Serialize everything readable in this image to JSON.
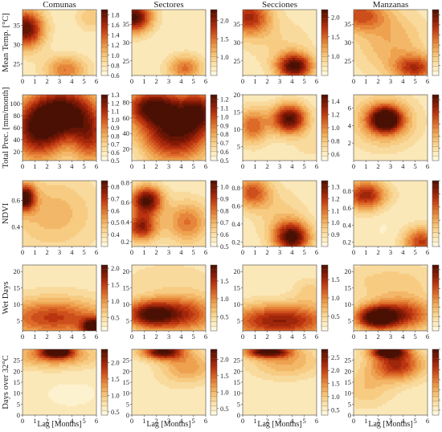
{
  "chart_data": {
    "type": "heatmap",
    "layout": "5 rows x 4 columns grid of filled contour plots with colorbars",
    "colormap": [
      "#fffbe6",
      "#fbe8b8",
      "#f7cc82",
      "#eea24f",
      "#dd6a28",
      "#bb3410",
      "#821906",
      "#4b1004"
    ],
    "columns": [
      "Comunas",
      "Sectores",
      "Secciones",
      "Manzanas"
    ],
    "rows": [
      "Mean Temp. [°C]",
      "Total Prec. [mm/month]",
      "NDVI",
      "Wet Days",
      "Days over 32°C"
    ],
    "xlabel": "Lag [Months]",
    "x_ticks": [
      "0",
      "1",
      "2",
      "3",
      "4",
      "5",
      "6"
    ],
    "xlim": [
      0,
      6
    ],
    "panels": [
      {
        "row": 0,
        "col": 0,
        "ylim": [
          22,
          39
        ],
        "y_ticks": [
          "25",
          "30",
          "35"
        ],
        "cbar_range": [
          0.6,
          1.9
        ],
        "cbar_ticks": [
          "0.6",
          "0.8",
          "1.0",
          "1.2",
          "1.4",
          "1.6",
          "1.8"
        ],
        "hotspots": [
          {
            "lag": 0.3,
            "y": 34,
            "value": 1.85,
            "sx": 1.0,
            "sy": 3.5
          },
          {
            "lag": 3.5,
            "y": 23.5,
            "value": 1.3,
            "sx": 1.2,
            "sy": 2.5
          },
          {
            "lag": 5.5,
            "y": 37,
            "value": 1.0,
            "sx": 0.8,
            "sy": 2.5
          },
          {
            "lag": 3,
            "y": 30,
            "value": 0.75,
            "sx": 2,
            "sy": 5
          }
        ]
      },
      {
        "row": 0,
        "col": 1,
        "ylim": [
          21,
          39
        ],
        "y_ticks": [
          "25",
          "30",
          "35"
        ],
        "cbar_range": [
          0.5,
          2.3
        ],
        "cbar_ticks": [
          "1.0",
          "1.5",
          "2.0"
        ],
        "hotspots": [
          {
            "lag": 0.2,
            "y": 37,
            "value": 2.3,
            "sx": 1.0,
            "sy": 3.0
          },
          {
            "lag": 4.3,
            "y": 23,
            "value": 1.5,
            "sx": 1.0,
            "sy": 2.5
          },
          {
            "lag": 2,
            "y": 30,
            "value": 0.7,
            "sx": 2,
            "sy": 5
          }
        ]
      },
      {
        "row": 0,
        "col": 2,
        "ylim": [
          21,
          39
        ],
        "y_ticks": [
          "25",
          "30",
          "35"
        ],
        "cbar_range": [
          0.5,
          2.2
        ],
        "cbar_ticks": [
          "1.0",
          "1.5",
          "2.0"
        ],
        "hotspots": [
          {
            "lag": 0.5,
            "y": 37,
            "value": 1.8,
            "sx": 1.2,
            "sy": 3.5
          },
          {
            "lag": 4.2,
            "y": 23.5,
            "value": 2.2,
            "sx": 1.0,
            "sy": 2.5
          },
          {
            "lag": 3,
            "y": 30,
            "value": 0.9,
            "sx": 2,
            "sy": 5
          }
        ]
      },
      {
        "row": 0,
        "col": 3,
        "ylim": [
          21,
          39
        ],
        "y_ticks": [
          "25",
          "30",
          "35"
        ],
        "cbar_range": [
          0.6,
          1.9
        ],
        "cbar_ticks": [
          "0.8",
          "1.0",
          "1.2",
          "1.4",
          "1.6",
          "1.8"
        ],
        "hotspots": [
          {
            "lag": 0.5,
            "y": 37.5,
            "value": 1.4,
            "sx": 1.5,
            "sy": 3.0
          },
          {
            "lag": 5.0,
            "y": 23,
            "value": 1.5,
            "sx": 1.2,
            "sy": 2.5
          },
          {
            "lag": 3,
            "y": 30,
            "value": 1.1,
            "sx": 2,
            "sy": 6
          }
        ]
      },
      {
        "row": 1,
        "col": 0,
        "ylim": [
          5,
          115
        ],
        "y_ticks": [
          "20",
          "40",
          "60",
          "80",
          "100"
        ],
        "cbar_range": [
          0.5,
          1.3
        ],
        "cbar_ticks": [
          "0.5",
          "0.6",
          "0.7",
          "0.8",
          "0.9",
          "1.0",
          "1.1",
          "1.2",
          "1.3"
        ],
        "hotspots": [
          {
            "lag": 3.5,
            "y": 85,
            "value": 1.3,
            "sx": 1.8,
            "sy": 30
          },
          {
            "lag": 1.2,
            "y": 55,
            "value": 1.2,
            "sx": 1.5,
            "sy": 35
          },
          {
            "lag": 5.5,
            "y": 40,
            "value": 1.0,
            "sx": 1.0,
            "sy": 30
          },
          {
            "lag": 0.2,
            "y": 20,
            "value": 0.6,
            "sx": 0.5,
            "sy": 10
          }
        ]
      },
      {
        "row": 1,
        "col": 1,
        "ylim": [
          5,
          90
        ],
        "y_ticks": [
          "20",
          "40",
          "60",
          "80"
        ],
        "cbar_range": [
          0.5,
          1.25
        ],
        "cbar_ticks": [
          "0.5",
          "0.6",
          "0.7",
          "0.8",
          "0.9",
          "1.0",
          "1.1",
          "1.2"
        ],
        "hotspots": [
          {
            "lag": 3.5,
            "y": 45,
            "value": 1.25,
            "sx": 2.0,
            "sy": 28
          },
          {
            "lag": 1.5,
            "y": 75,
            "value": 1.1,
            "sx": 1.5,
            "sy": 15
          },
          {
            "lag": 5.5,
            "y": 70,
            "value": 1.0,
            "sx": 1.0,
            "sy": 18
          },
          {
            "lag": 0.2,
            "y": 15,
            "value": 0.55,
            "sx": 0.6,
            "sy": 10
          }
        ]
      },
      {
        "row": 1,
        "col": 2,
        "ylim": [
          1,
          20
        ],
        "y_ticks": [
          "5",
          "10",
          "15",
          "20"
        ],
        "cbar_range": [
          0.5,
          1.5
        ],
        "cbar_ticks": [
          "0.6",
          "0.8",
          "1.0",
          "1.2",
          "1.4"
        ],
        "hotspots": [
          {
            "lag": 3.8,
            "y": 13,
            "value": 1.5,
            "sx": 1.0,
            "sy": 3.0
          },
          {
            "lag": 0.8,
            "y": 11,
            "value": 1.1,
            "sx": 0.9,
            "sy": 3.5
          },
          {
            "lag": 5.5,
            "y": 5,
            "value": 0.7,
            "sx": 1.0,
            "sy": 3
          }
        ]
      },
      {
        "row": 1,
        "col": 3,
        "ylim": [
          0,
          7.5
        ],
        "y_ticks": [
          "2",
          "4",
          "6"
        ],
        "cbar_range": [
          0.5,
          3.2
        ],
        "cbar_ticks": [
          "1.0",
          "1.5",
          "2.0",
          "2.5",
          "3.0"
        ],
        "hotspots": [
          {
            "lag": 2.6,
            "y": 4.7,
            "value": 3.2,
            "sx": 0.9,
            "sy": 1.0
          },
          {
            "lag": 2.5,
            "y": 4.5,
            "value": 1.8,
            "sx": 1.8,
            "sy": 2.0
          }
        ]
      },
      {
        "row": 2,
        "col": 0,
        "ylim": [
          0.25,
          0.75
        ],
        "y_ticks": [
          "0.4",
          "0.6"
        ],
        "cbar_range": [
          0.3,
          0.85
        ],
        "cbar_ticks": [
          "0.4",
          "0.5",
          "0.6",
          "0.7",
          "0.8"
        ],
        "hotspots": [
          {
            "lag": 0.2,
            "y": 0.62,
            "value": 0.85,
            "sx": 0.6,
            "sy": 0.07
          },
          {
            "lag": 2.5,
            "y": 0.5,
            "value": 0.5,
            "sx": 2.5,
            "sy": 0.2
          }
        ]
      },
      {
        "row": 2,
        "col": 1,
        "ylim": [
          0.15,
          0.82
        ],
        "y_ticks": [
          "0.2",
          "0.4",
          "0.6",
          "0.8"
        ],
        "cbar_range": [
          0.5,
          1.05
        ],
        "cbar_ticks": [
          "0.5",
          "0.6",
          "0.7",
          "0.8",
          "0.9",
          "1.0"
        ],
        "hotspots": [
          {
            "lag": 1.2,
            "y": 0.62,
            "value": 1.05,
            "sx": 0.9,
            "sy": 0.1
          },
          {
            "lag": 0.8,
            "y": 0.35,
            "value": 0.95,
            "sx": 0.9,
            "sy": 0.1
          },
          {
            "lag": 4.5,
            "y": 0.4,
            "value": 0.8,
            "sx": 1.2,
            "sy": 0.15
          }
        ]
      },
      {
        "row": 2,
        "col": 2,
        "ylim": [
          0.15,
          0.88
        ],
        "y_ticks": [
          "0.2",
          "0.4",
          "0.6",
          "0.8"
        ],
        "cbar_range": [
          0.8,
          1.35
        ],
        "cbar_ticks": [
          "0.9",
          "1.0",
          "1.1",
          "1.2",
          "1.3"
        ],
        "hotspots": [
          {
            "lag": 4.0,
            "y": 0.25,
            "value": 1.35,
            "sx": 1.0,
            "sy": 0.12
          },
          {
            "lag": 0.8,
            "y": 0.75,
            "value": 1.15,
            "sx": 1.0,
            "sy": 0.12
          },
          {
            "lag": 3,
            "y": 0.5,
            "value": 0.95,
            "sx": 1.5,
            "sy": 0.2
          }
        ]
      },
      {
        "row": 2,
        "col": 3,
        "ylim": [
          0.15,
          0.92
        ],
        "y_ticks": [
          "0.2",
          "0.4",
          "0.6",
          "0.8"
        ],
        "cbar_range": [
          0.8,
          1.3
        ],
        "cbar_ticks": [
          "0.8",
          "0.9",
          "1.0",
          "1.1",
          "1.2",
          "1.3"
        ],
        "hotspots": [
          {
            "lag": 1.0,
            "y": 0.75,
            "value": 1.2,
            "sx": 1.2,
            "sy": 0.12
          },
          {
            "lag": 5.5,
            "y": 0.2,
            "value": 1.15,
            "sx": 1.0,
            "sy": 0.12
          },
          {
            "lag": 2.5,
            "y": 0.5,
            "value": 0.85,
            "sx": 0.6,
            "sy": 0.35
          }
        ]
      },
      {
        "row": 3,
        "col": 0,
        "ylim": [
          2,
          22
        ],
        "y_ticks": [
          "5",
          "10",
          "15",
          "20"
        ],
        "cbar_range": [
          0.1,
          2.1
        ],
        "cbar_ticks": [
          "0.5",
          "1.0",
          "1.5",
          "2.0"
        ],
        "hotspots": [
          {
            "lag": 5.8,
            "y": 3,
            "value": 2.1,
            "sx": 0.7,
            "sy": 2.0
          },
          {
            "lag": 2.5,
            "y": 6,
            "value": 1.5,
            "sx": 3.0,
            "sy": 4.0
          },
          {
            "lag": 3,
            "y": 18,
            "value": 0.4,
            "sx": 3,
            "sy": 4
          }
        ]
      },
      {
        "row": 3,
        "col": 1,
        "ylim": [
          2,
          22
        ],
        "y_ticks": [
          "5",
          "10",
          "15",
          "20"
        ],
        "cbar_range": [
          0.1,
          1.95
        ],
        "cbar_ticks": [
          "0.5",
          "1.0",
          "1.5"
        ],
        "hotspots": [
          {
            "lag": 1.5,
            "y": 7,
            "value": 1.85,
            "sx": 1.5,
            "sy": 3.0
          },
          {
            "lag": 4.5,
            "y": 7,
            "value": 1.3,
            "sx": 1.8,
            "sy": 4
          },
          {
            "lag": 3,
            "y": 18,
            "value": 0.5,
            "sx": 3,
            "sy": 4
          }
        ]
      },
      {
        "row": 3,
        "col": 2,
        "ylim": [
          2,
          22
        ],
        "y_ticks": [
          "5",
          "10",
          "15",
          "20"
        ],
        "cbar_range": [
          0.1,
          1.9
        ],
        "cbar_ticks": [
          "0.5",
          "1.0",
          "1.5"
        ],
        "hotspots": [
          {
            "lag": 3.0,
            "y": 5,
            "value": 1.6,
            "sx": 3.0,
            "sy": 3.5
          },
          {
            "lag": 5.5,
            "y": 14,
            "value": 0.6,
            "sx": 1,
            "sy": 3
          }
        ]
      },
      {
        "row": 3,
        "col": 3,
        "ylim": [
          2,
          22
        ],
        "y_ticks": [
          "5",
          "10",
          "15",
          "20"
        ],
        "cbar_range": [
          0.1,
          1.5
        ],
        "cbar_ticks": [
          "0.2",
          "0.4",
          "0.6",
          "0.8",
          "1.0",
          "1.2",
          "1.4"
        ],
        "hotspots": [
          {
            "lag": 1.8,
            "y": 6,
            "value": 1.45,
            "sx": 1.2,
            "sy": 2.5
          },
          {
            "lag": 4.0,
            "y": 7,
            "value": 1.1,
            "sx": 1.8,
            "sy": 3.5
          },
          {
            "lag": 3,
            "y": 17,
            "value": 0.5,
            "sx": 3,
            "sy": 4
          }
        ]
      },
      {
        "row": 4,
        "col": 0,
        "ylim": [
          0,
          30
        ],
        "y_ticks": [
          "0",
          "5",
          "10",
          "15",
          "20",
          "25"
        ],
        "cbar_range": [
          0.4,
          2.4
        ],
        "cbar_ticks": [
          "0.5",
          "1.0",
          "1.5",
          "2.0"
        ],
        "hotspots": [
          {
            "lag": 2.8,
            "y": 29,
            "value": 2.4,
            "sx": 0.9,
            "sy": 2.0
          },
          {
            "lag": 2.5,
            "y": 27,
            "value": 1.4,
            "sx": 2.5,
            "sy": 4
          },
          {
            "lag": 4,
            "y": 10,
            "value": 0.6,
            "sx": 2,
            "sy": 6
          }
        ]
      },
      {
        "row": 4,
        "col": 1,
        "ylim": [
          0,
          30
        ],
        "y_ticks": [
          "0",
          "5",
          "10",
          "15",
          "20",
          "25"
        ],
        "cbar_range": [
          0.3,
          2.3
        ],
        "cbar_ticks": [
          "0.5",
          "1.0",
          "1.5",
          "2.0"
        ],
        "hotspots": [
          {
            "lag": 2.5,
            "y": 29,
            "value": 2.3,
            "sx": 1.2,
            "sy": 2.5
          },
          {
            "lag": 4.5,
            "y": 22,
            "value": 1.2,
            "sx": 1.5,
            "sy": 5
          },
          {
            "lag": 2,
            "y": 10,
            "value": 0.6,
            "sx": 2,
            "sy": 6
          }
        ]
      },
      {
        "row": 4,
        "col": 2,
        "ylim": [
          0,
          30
        ],
        "y_ticks": [
          "0",
          "5",
          "10",
          "15",
          "20",
          "25"
        ],
        "cbar_range": [
          0.3,
          2.8
        ],
        "cbar_ticks": [
          "0.5",
          "1.0",
          "1.5",
          "2.0",
          "2.5"
        ],
        "hotspots": [
          {
            "lag": 2.0,
            "y": 29,
            "value": 2.8,
            "sx": 1.3,
            "sy": 2.0
          },
          {
            "lag": 3.5,
            "y": 24,
            "value": 1.3,
            "sx": 2.0,
            "sy": 5
          },
          {
            "lag": 3,
            "y": 8,
            "value": 0.6,
            "sx": 2.5,
            "sy": 6
          }
        ]
      },
      {
        "row": 4,
        "col": 3,
        "ylim": [
          0,
          30
        ],
        "y_ticks": [
          "0",
          "5",
          "10",
          "15",
          "20",
          "25"
        ],
        "cbar_range": [
          0.5,
          1.8
        ],
        "cbar_ticks": [
          "0.6",
          "0.8",
          "1.0",
          "1.2",
          "1.4",
          "1.6",
          "1.8"
        ],
        "hotspots": [
          {
            "lag": 2.8,
            "y": 29,
            "value": 1.8,
            "sx": 1.0,
            "sy": 2.0
          },
          {
            "lag": 3.5,
            "y": 23,
            "value": 1.5,
            "sx": 1.5,
            "sy": 5
          },
          {
            "lag": 1,
            "y": 12,
            "value": 0.9,
            "sx": 1.5,
            "sy": 6
          }
        ]
      }
    ]
  }
}
